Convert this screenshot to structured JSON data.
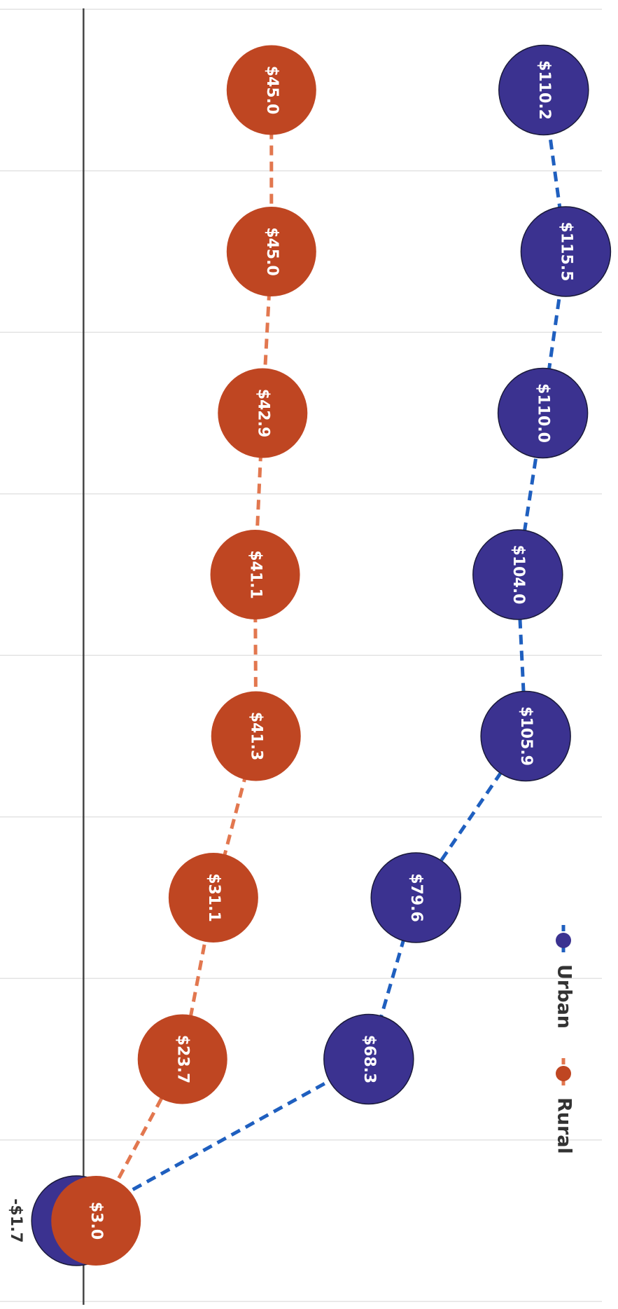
{
  "chart_data": {
    "type": "line",
    "categories": [
      null,
      null,
      null,
      null,
      null,
      null,
      null,
      null
    ],
    "series": [
      {
        "name": "Urban",
        "color": "#3b3290",
        "line_color": "#1f5fbf",
        "values": [
          -1.7,
          68.3,
          79.6,
          105.9,
          104.0,
          110.0,
          115.5,
          110.2
        ],
        "value_labels": [
          "-$1.7",
          "$68.3",
          "$79.6",
          "$105.9",
          "$104.0",
          "$110.0",
          "$115.5",
          "$110.2"
        ]
      },
      {
        "name": "Rural",
        "color": "#bf4622",
        "line_color": "#e2774f",
        "values": [
          3.0,
          23.7,
          31.1,
          41.3,
          41.1,
          42.9,
          45.0,
          45.0
        ],
        "value_labels": [
          "$3.0",
          "$23.7",
          "$31.1",
          "$41.3",
          "$41.1",
          "$42.9",
          "$45.0",
          "$45.0"
        ]
      }
    ],
    "ylim": [
      -20,
      128
    ]
  }
}
